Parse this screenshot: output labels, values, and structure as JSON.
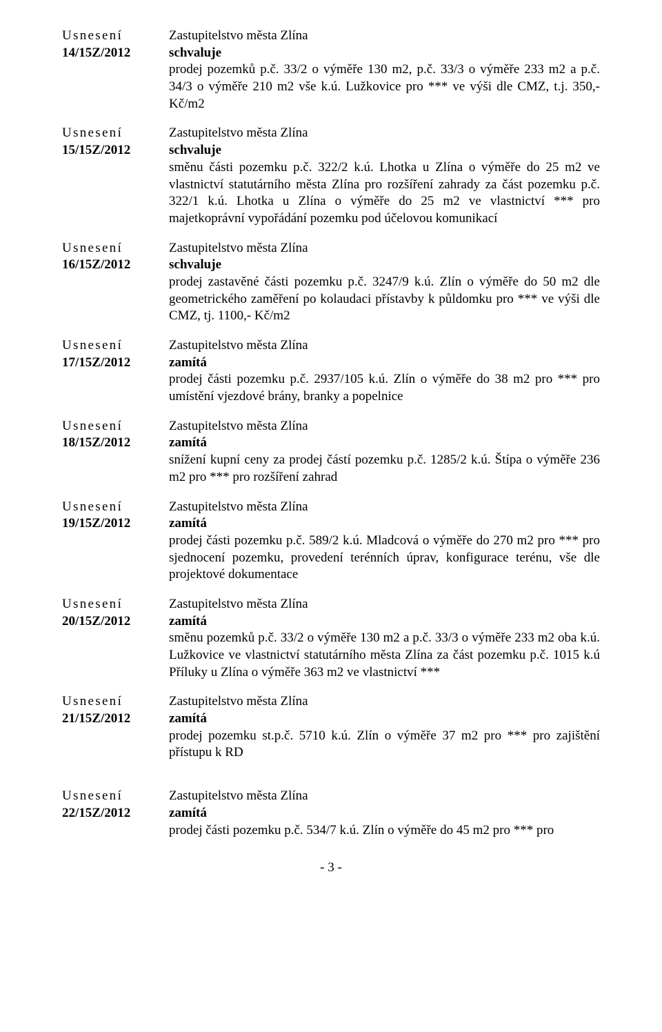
{
  "labels": {
    "usneseni": "Usnesení",
    "zastup": "Zastupitelstvo města Zlína",
    "schvaluje": "schvaluje",
    "zamita": "zamítá"
  },
  "entries": [
    {
      "ref": "14/15Z/2012",
      "action": "schvaluje",
      "text": "prodej pozemků p.č. 33/2 o výměře 130 m2, p.č. 33/3 o výměře 233 m2 a p.č. 34/3 o výměře 210 m2 vše k.ú. Lužkovice pro *** ve výši dle CMZ, t.j. 350,-Kč/m2"
    },
    {
      "ref": "15/15Z/2012",
      "action": "schvaluje",
      "text": "směnu části pozemku p.č. 322/2 k.ú. Lhotka u Zlína o výměře do 25 m2 ve vlastnictví statutárního města Zlína pro rozšíření zahrady za část pozemku p.č. 322/1 k.ú. Lhotka u Zlína o výměře do 25 m2 ve vlastnictví *** pro majetkoprávní vypořádání pozemku pod účelovou  komunikací"
    },
    {
      "ref": "16/15Z/2012",
      "action": "schvaluje",
      "text": "prodej zastavěné části pozemku p.č. 3247/9 k.ú. Zlín o výměře do 50 m2 dle geometrického zaměření po kolaudaci přístavby  k půldomku pro *** ve výši dle CMZ, tj. 1100,- Kč/m2"
    },
    {
      "ref": "17/15Z/2012",
      "action": "zamítá",
      "text": "prodej části pozemku p.č. 2937/105 k.ú. Zlín o výměře do 38 m2 pro *** pro umístění vjezdové brány, branky a popelnice"
    },
    {
      "ref": "18/15Z/2012",
      "action": "zamítá",
      "text": "snížení kupní ceny za prodej částí pozemku p.č. 1285/2 k.ú. Štípa o výměře 236 m2 pro *** pro rozšíření zahrad"
    },
    {
      "ref": "19/15Z/2012",
      "action": "zamítá",
      "text": "prodej části pozemku p.č. 589/2 k.ú. Mladcová o výměře do 270 m2 pro *** pro sjednocení pozemku, provedení terénních úprav, konfigurace terénu, vše dle projektové dokumentace"
    },
    {
      "ref": "20/15Z/2012",
      "action": "zamítá",
      "text": "směnu pozemků p.č. 33/2 o výměře 130 m2 a p.č. 33/3 o výměře 233 m2 oba k.ú. Lužkovice ve vlastnictví statutárního města Zlína za část pozemku p.č. 1015 k.ú Příluky u Zlína o výměře 363 m2 ve vlastnictví ***"
    },
    {
      "ref": "21/15Z/2012",
      "action": "zamítá",
      "text": "prodej pozemku st.p.č. 5710 k.ú. Zlín o výměře 37 m2 pro *** pro zajištění přístupu k RD"
    },
    {
      "ref": "22/15Z/2012",
      "action": "zamítá",
      "text": "prodej části pozemku p.č. 534/7 k.ú. Zlín o výměře do 45 m2 pro *** pro"
    }
  ],
  "page_number": "- 3 -"
}
